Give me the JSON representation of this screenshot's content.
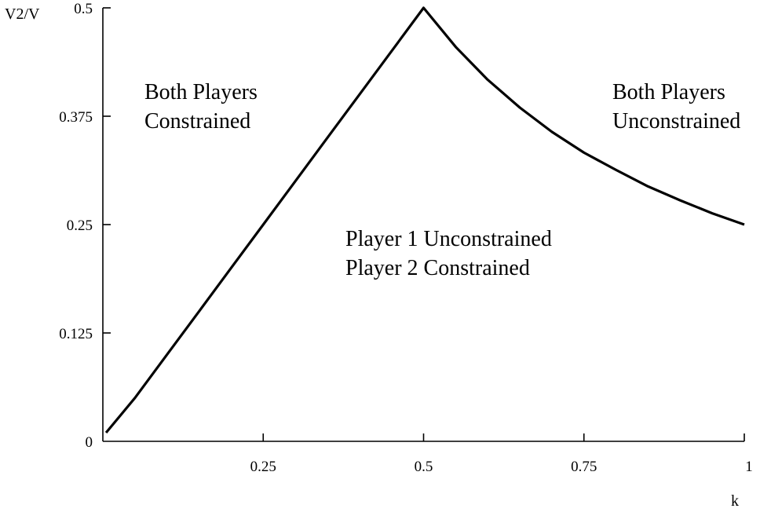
{
  "chart_data": {
    "type": "line",
    "title": "",
    "xlabel": "k",
    "ylabel": "V2/V",
    "xlim": [
      0,
      1
    ],
    "ylim": [
      0,
      0.5
    ],
    "x_ticks": [
      {
        "value": 0.25,
        "label": "0.25"
      },
      {
        "value": 0.5,
        "label": "0.5"
      },
      {
        "value": 0.75,
        "label": "0.75"
      },
      {
        "value": 1,
        "label": "1"
      }
    ],
    "y_ticks": [
      {
        "value": 0,
        "label": "0"
      },
      {
        "value": 0.125,
        "label": "0.125"
      },
      {
        "value": 0.25,
        "label": "0.25"
      },
      {
        "value": 0.375,
        "label": "0.375"
      },
      {
        "value": 0.5,
        "label": "0.5"
      }
    ],
    "grid": false,
    "series": [
      {
        "color": "#000000",
        "x": [
          0.005,
          0.05,
          0.1,
          0.15,
          0.2,
          0.25,
          0.3,
          0.35,
          0.4,
          0.45,
          0.5,
          0.55,
          0.6,
          0.65,
          0.7,
          0.75,
          0.8,
          0.85,
          0.9,
          0.95,
          1.0
        ],
        "y": [
          0.01,
          0.05,
          0.1,
          0.15,
          0.2,
          0.25,
          0.3,
          0.35,
          0.4,
          0.45,
          0.5,
          0.455,
          0.417,
          0.385,
          0.357,
          0.333,
          0.313,
          0.294,
          0.278,
          0.263,
          0.25
        ]
      }
    ],
    "annotations": [
      {
        "id": "left",
        "lines": [
          "Both Players",
          "Constrained"
        ]
      },
      {
        "id": "middle",
        "lines": [
          "Player 1 Unconstrained",
          "Player 2 Constrained"
        ]
      },
      {
        "id": "right",
        "lines": [
          "Both Players",
          "Unconstrained"
        ]
      }
    ]
  }
}
